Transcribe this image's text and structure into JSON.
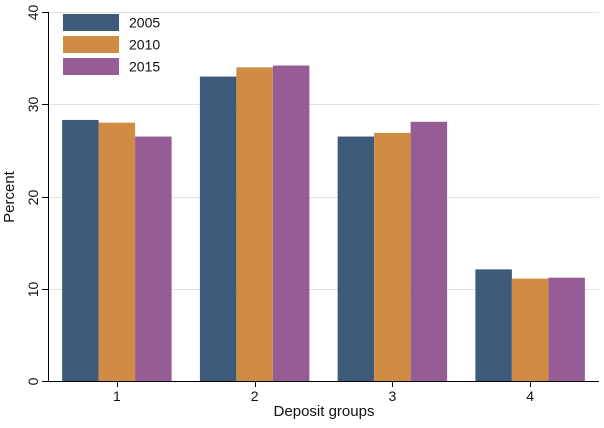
{
  "chart_data": {
    "type": "bar",
    "title": "",
    "xlabel": "Deposit groups",
    "ylabel": "Percent",
    "categories": [
      "1",
      "2",
      "3",
      "4"
    ],
    "series": [
      {
        "name": "2005",
        "color": "#3e5a7a",
        "values": [
          28.3,
          33.0,
          26.5,
          12.1
        ]
      },
      {
        "name": "2010",
        "color": "#d08c43",
        "values": [
          28.0,
          34.0,
          26.9,
          11.1
        ]
      },
      {
        "name": "2015",
        "color": "#965c96",
        "values": [
          26.5,
          34.2,
          28.1,
          11.2
        ]
      }
    ],
    "ylim": [
      0,
      40
    ],
    "yticks": [
      0,
      10,
      20,
      30,
      40
    ],
    "grid": true,
    "legend_position": "top-left"
  }
}
